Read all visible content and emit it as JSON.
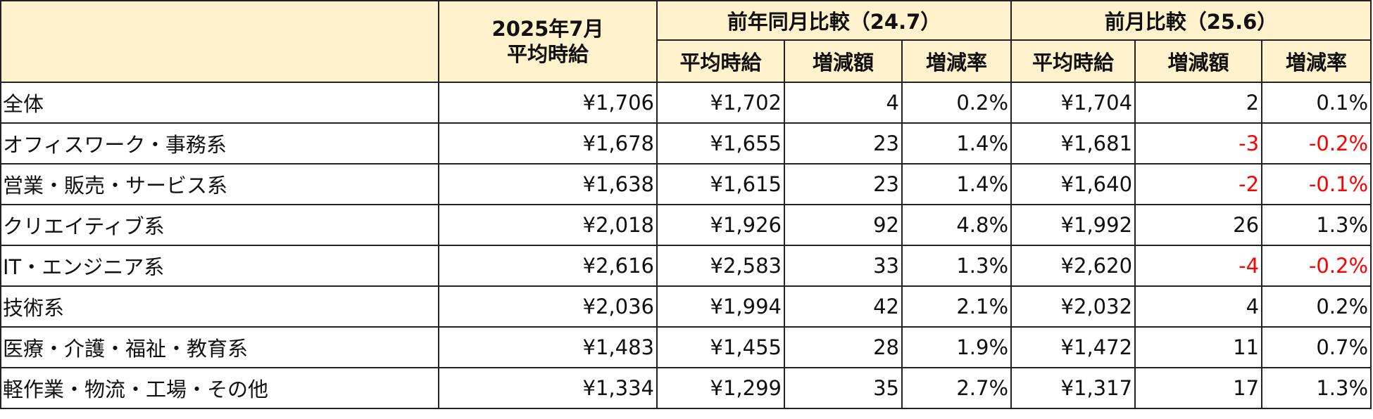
{
  "header": {
    "period_line1": "2025年7月",
    "period_line2": "平均時給",
    "yoy_group": "前年同月比較（24.7）",
    "mom_group": "前月比較（25.6）",
    "sub": {
      "avg": "平均時給",
      "diff": "増減額",
      "rate": "増減率"
    }
  },
  "rows": [
    {
      "category": "全体",
      "current": "¥1,706",
      "yoy_avg": "¥1,702",
      "yoy_diff": "4",
      "yoy_rate": "0.2%",
      "mom_avg": "¥1,704",
      "mom_diff": "2",
      "mom_rate": "0.1%"
    },
    {
      "category": "オフィスワーク・事務系",
      "current": "¥1,678",
      "yoy_avg": "¥1,655",
      "yoy_diff": "23",
      "yoy_rate": "1.4%",
      "mom_avg": "¥1,681",
      "mom_diff": "-3",
      "mom_rate": "-0.2%"
    },
    {
      "category": "営業・販売・サービス系",
      "current": "¥1,638",
      "yoy_avg": "¥1,615",
      "yoy_diff": "23",
      "yoy_rate": "1.4%",
      "mom_avg": "¥1,640",
      "mom_diff": "-2",
      "mom_rate": "-0.1%"
    },
    {
      "category": "クリエイティブ系",
      "current": "¥2,018",
      "yoy_avg": "¥1,926",
      "yoy_diff": "92",
      "yoy_rate": "4.8%",
      "mom_avg": "¥1,992",
      "mom_diff": "26",
      "mom_rate": "1.3%"
    },
    {
      "category": "IT・エンジニア系",
      "current": "¥2,616",
      "yoy_avg": "¥2,583",
      "yoy_diff": "33",
      "yoy_rate": "1.3%",
      "mom_avg": "¥2,620",
      "mom_diff": "-4",
      "mom_rate": "-0.2%"
    },
    {
      "category": "技術系",
      "current": "¥2,036",
      "yoy_avg": "¥1,994",
      "yoy_diff": "42",
      "yoy_rate": "2.1%",
      "mom_avg": "¥2,032",
      "mom_diff": "4",
      "mom_rate": "0.2%"
    },
    {
      "category": "医療・介護・福祉・教育系",
      "current": "¥1,483",
      "yoy_avg": "¥1,455",
      "yoy_diff": "28",
      "yoy_rate": "1.9%",
      "mom_avg": "¥1,472",
      "mom_diff": "11",
      "mom_rate": "0.7%"
    },
    {
      "category": "軽作業・物流・工場・その他",
      "current": "¥1,334",
      "yoy_avg": "¥1,299",
      "yoy_diff": "35",
      "yoy_rate": "2.7%",
      "mom_avg": "¥1,317",
      "mom_diff": "17",
      "mom_rate": "1.3%"
    }
  ],
  "colors": {
    "header_bg": "#fff2cc",
    "negative": "#ff0000",
    "border": "#222222"
  }
}
